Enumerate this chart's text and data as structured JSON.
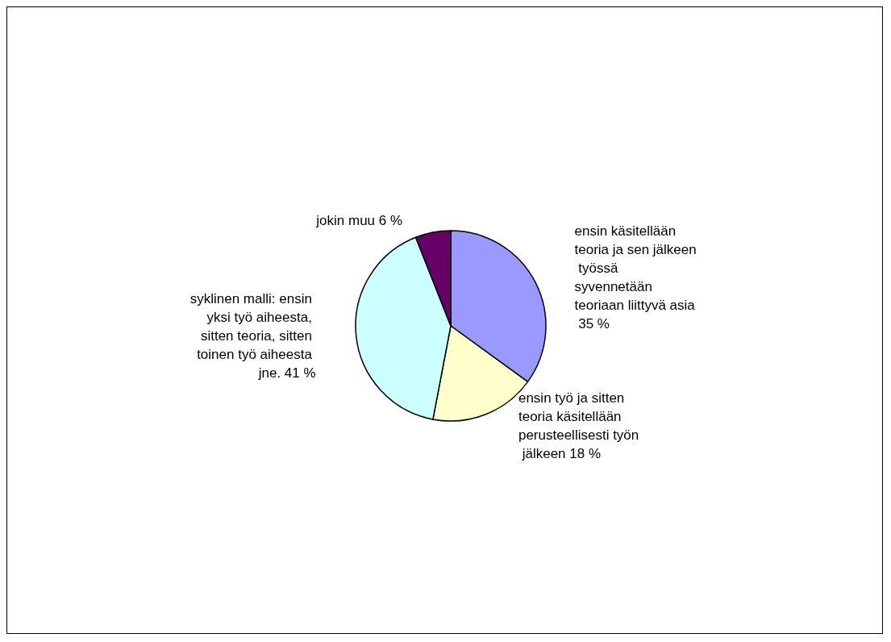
{
  "chart_data": {
    "type": "pie",
    "categories": [
      "ensin käsitellään teoria ja sen jälkeen työssä syvennetään teoriaan liittyvä asia",
      "ensin työ ja sitten teoria käsitellään perusteellisesti työn jälkeen",
      "syklinen malli: ensin yksi työ aiheesta, sitten teoria, sitten toinen työ aiheesta jne.",
      "jokin muu"
    ],
    "values": [
      35,
      18,
      41,
      6
    ],
    "value_labels": [
      "35 %",
      "18 %",
      "41 %",
      "6 %"
    ],
    "colors": [
      "#9999ff",
      "#ffffcc",
      "#ccffff",
      "#660066"
    ],
    "legend": false
  }
}
